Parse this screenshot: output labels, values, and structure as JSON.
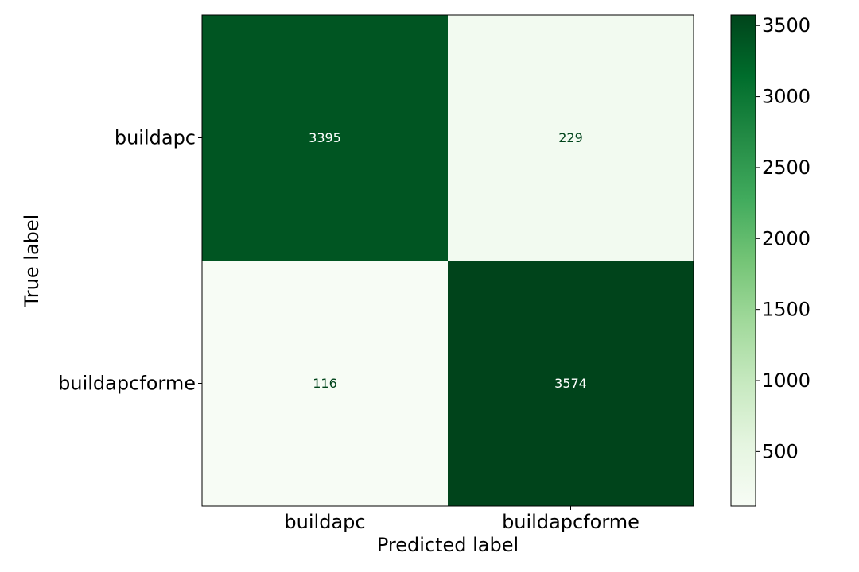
{
  "chart_data": {
    "type": "heatmap",
    "title": "",
    "xlabel": "Predicted label",
    "ylabel": "True label",
    "x_categories": [
      "buildapc",
      "buildapcforme"
    ],
    "y_categories": [
      "buildapc",
      "buildapcforme"
    ],
    "matrix": [
      [
        3395,
        229
      ],
      [
        116,
        3574
      ]
    ],
    "value_labels": [
      [
        "3395",
        "229"
      ],
      [
        "116",
        "3574"
      ]
    ],
    "colormap": "Greens",
    "color_range": [
      116,
      3574
    ],
    "colorbar": {
      "ticks": [
        500,
        1000,
        1500,
        2000,
        2500,
        3000,
        3500
      ],
      "tick_labels": [
        "500",
        "1000",
        "1500",
        "2000",
        "2500",
        "3000",
        "3500"
      ],
      "placement": "right"
    },
    "text_colors": {
      "on_dark": "#ffffff",
      "on_light": "#00441b"
    },
    "grid": false
  }
}
